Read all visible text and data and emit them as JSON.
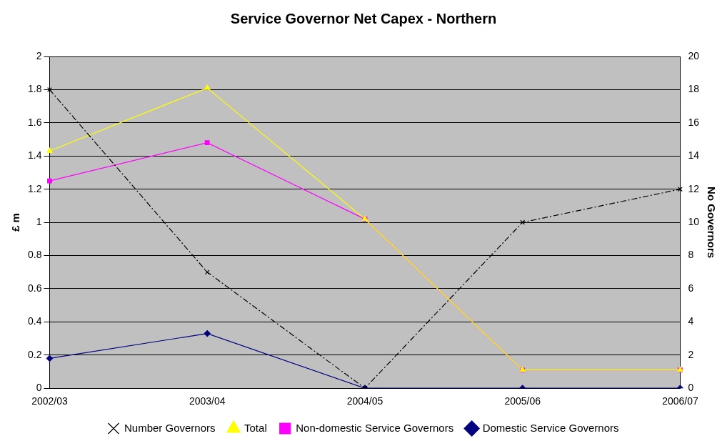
{
  "chart_data": {
    "type": "line",
    "title": "Service Governor Net Capex - Northern",
    "ylabel": "£ m",
    "y2label": "No Governors",
    "categories": [
      "2002/03",
      "2003/04",
      "2004/05",
      "2005/06",
      "2006/07"
    ],
    "series": [
      {
        "name": "Domestic Service Governors",
        "color": "#000080",
        "marker": "diamond",
        "values": [
          0.18,
          0.33,
          0,
          0,
          0
        ]
      },
      {
        "name": "Non-domestic Service Governors",
        "color": "#ff00ff",
        "marker": "square",
        "values": [
          1.25,
          1.48,
          1.02,
          0.11,
          0.11
        ]
      },
      {
        "name": "Total",
        "color": "#ffff00",
        "marker": "triangle",
        "values": [
          1.43,
          1.81,
          1.02,
          0.11,
          0.11
        ]
      },
      {
        "name": "Number Governors",
        "color": "#000000",
        "marker": "cross",
        "line_style": "dashed",
        "axis": "y2",
        "values": [
          18,
          7,
          0,
          10,
          12
        ]
      }
    ],
    "ylim": [
      0,
      2
    ],
    "yticks": [
      0,
      0.2,
      0.4,
      0.6,
      0.8,
      1,
      1.2,
      1.4,
      1.6,
      1.8,
      2
    ],
    "y2lim": [
      0,
      20
    ],
    "y2ticks": [
      0,
      2,
      4,
      6,
      8,
      10,
      12,
      14,
      16,
      18,
      20
    ],
    "grid": "y",
    "legend": "bottom"
  }
}
